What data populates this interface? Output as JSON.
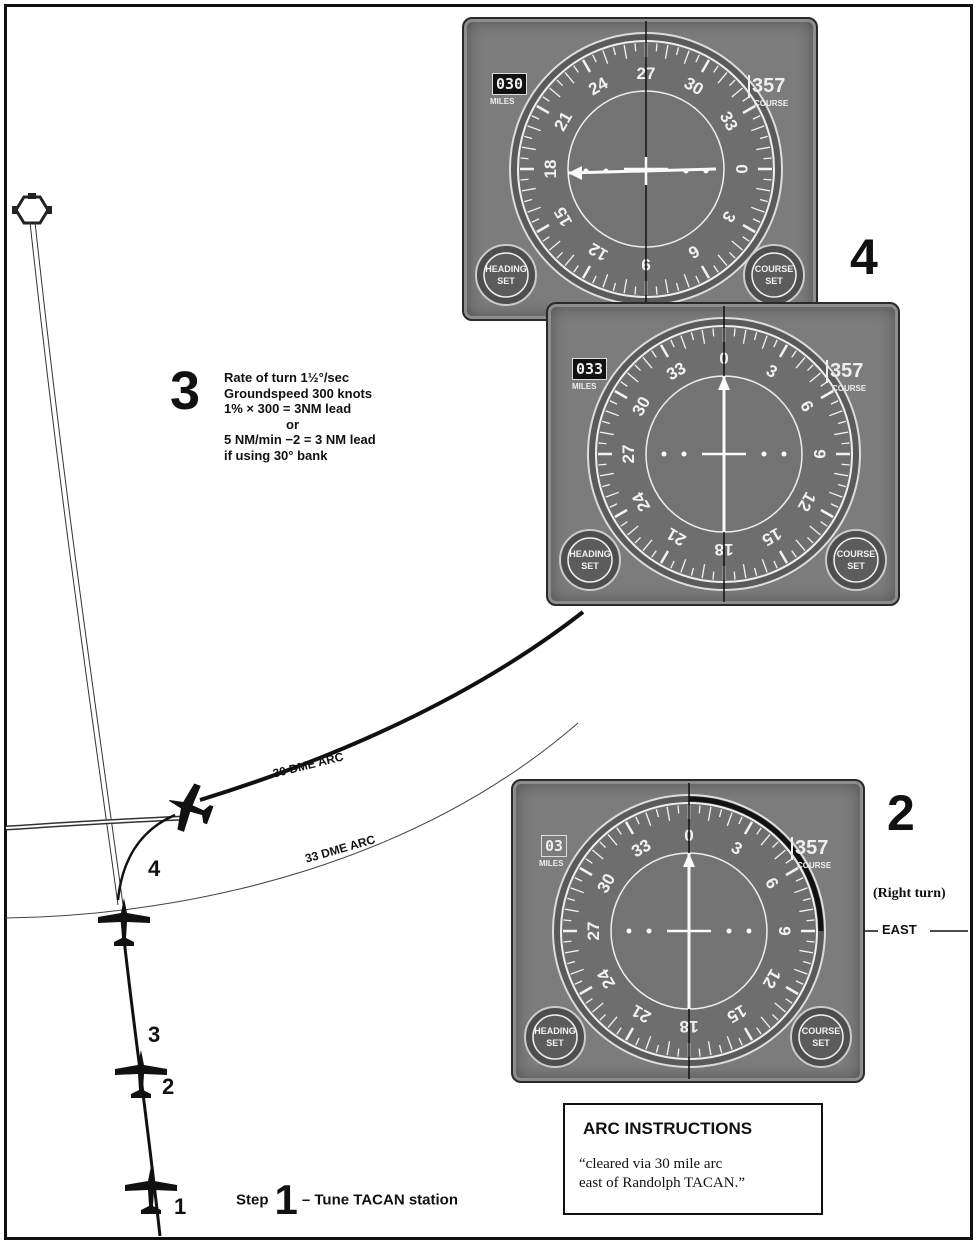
{
  "step3": {
    "number": "3",
    "lines": [
      "Rate of turn 1½°/sec",
      "Groundspeed 300 knots",
      "1% × 300 = 3NM lead",
      "or",
      "5 NM/min −2 = 3 NM lead",
      "if using 30° bank"
    ]
  },
  "arcs": {
    "arc30": "30 DME ARC",
    "arc33": "33 DME ARC"
  },
  "positions": {
    "p4": "4",
    "p3": "3",
    "p2": "2",
    "p1": "1"
  },
  "step1": {
    "prefix": "Step",
    "number": "1",
    "text": "– Tune TACAN station"
  },
  "instruments": {
    "top": {
      "label": "4",
      "miles_value": "030",
      "miles_label": "MILES",
      "course_value": "357",
      "course_label": "COURSE",
      "heading_knob": [
        "HEADING",
        "SET"
      ],
      "course_knob": [
        "COURSE",
        "SET"
      ],
      "dial_numbers": [
        "0",
        "3",
        "6",
        "9",
        "12",
        "15",
        "18",
        "21",
        "24",
        "27",
        "30",
        "33"
      ]
    },
    "middle": {
      "miles_value": "033",
      "miles_label": "MILES",
      "course_value": "357",
      "course_label": "COURSE",
      "heading_knob": [
        "HEADING",
        "SET"
      ],
      "course_knob": [
        "COURSE",
        "SET"
      ],
      "dial_numbers": [
        "0",
        "3",
        "6",
        "9",
        "12",
        "15",
        "18",
        "21",
        "24",
        "27",
        "30",
        "33"
      ]
    },
    "lower": {
      "label": "2",
      "miles_value": "03",
      "miles_label": "MILES",
      "course_value": "357",
      "course_label": "COURSE",
      "heading_knob": [
        "HEADING",
        "SET"
      ],
      "course_knob": [
        "COURSE",
        "SET"
      ],
      "dial_numbers": [
        "0",
        "3",
        "6",
        "9",
        "12",
        "15",
        "18",
        "21",
        "24",
        "27",
        "30",
        "33"
      ]
    }
  },
  "right_turn": "(Right turn)",
  "east": "EAST",
  "arc_instructions": {
    "title": "ARC INSTRUCTIONS",
    "text_line1": "“cleared via 30 mile arc",
    "text_line2": "east of Randolph TACAN.”"
  }
}
